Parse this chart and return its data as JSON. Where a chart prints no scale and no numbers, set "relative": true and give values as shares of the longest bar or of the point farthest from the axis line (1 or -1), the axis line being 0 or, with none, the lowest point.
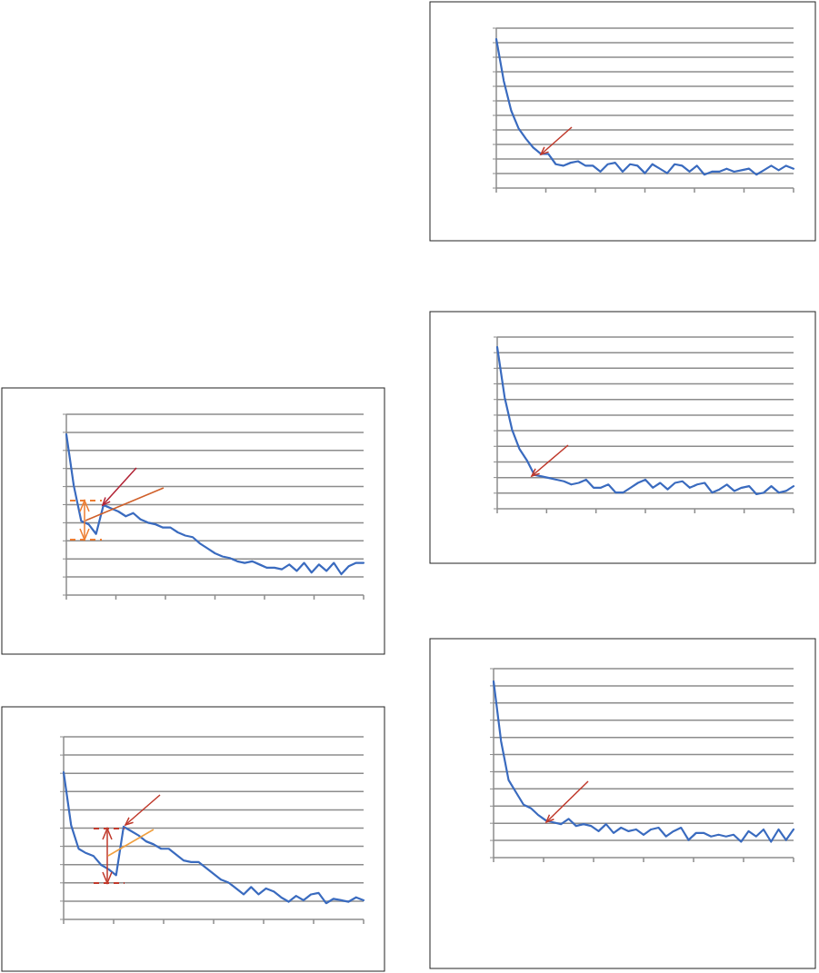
{
  "chart_data": [
    {
      "type": "line",
      "relative": true,
      "grid": "y",
      "categories": [
        null,
        null,
        null,
        null,
        null,
        null,
        null,
        null,
        null,
        null,
        null,
        null,
        null,
        null,
        null,
        null,
        null,
        null,
        null,
        null,
        null,
        null,
        null,
        null,
        null,
        null,
        null,
        null,
        null,
        null,
        null,
        null,
        null,
        null,
        null,
        null,
        null,
        null,
        null,
        null,
        null
      ],
      "series": [
        {
          "color": "#3a6bbf",
          "values": [
            1.0,
            0.68,
            0.46,
            0.44,
            0.38,
            0.56,
            0.54,
            0.52,
            0.49,
            0.51,
            0.47,
            0.45,
            0.44,
            0.42,
            0.42,
            0.39,
            0.37,
            0.36,
            0.32,
            0.29,
            0.26,
            0.24,
            0.23,
            0.21,
            0.2,
            0.21,
            0.19,
            0.17,
            0.17,
            0.16,
            0.19,
            0.15,
            0.2,
            0.14,
            0.19,
            0.15,
            0.2,
            0.13,
            0.18,
            0.2,
            0.2
          ]
        }
      ]
    },
    {
      "type": "line",
      "relative": true,
      "grid": "y",
      "categories": [
        null,
        null,
        null,
        null,
        null,
        null,
        null,
        null,
        null,
        null,
        null,
        null,
        null,
        null,
        null,
        null,
        null,
        null,
        null,
        null,
        null,
        null,
        null,
        null,
        null,
        null,
        null,
        null,
        null,
        null,
        null,
        null,
        null,
        null,
        null,
        null,
        null,
        null,
        null,
        null,
        null
      ],
      "series": [
        {
          "color": "#3a6bbf",
          "values": [
            1.0,
            0.64,
            0.48,
            0.45,
            0.43,
            0.37,
            0.34,
            0.3,
            0.63,
            0.6,
            0.57,
            0.53,
            0.51,
            0.48,
            0.48,
            0.44,
            0.4,
            0.39,
            0.39,
            0.35,
            0.31,
            0.27,
            0.25,
            0.21,
            0.17,
            0.22,
            0.17,
            0.21,
            0.19,
            0.15,
            0.12,
            0.16,
            0.13,
            0.17,
            0.18,
            0.11,
            0.14,
            0.13,
            0.12,
            0.15,
            0.13
          ]
        }
      ]
    },
    {
      "type": "line",
      "relative": true,
      "grid": "y",
      "categories": [
        null,
        null,
        null,
        null,
        null,
        null,
        null,
        null,
        null,
        null,
        null,
        null,
        null,
        null,
        null,
        null,
        null,
        null,
        null,
        null,
        null,
        null,
        null,
        null,
        null,
        null,
        null,
        null,
        null,
        null,
        null,
        null,
        null,
        null,
        null,
        null,
        null,
        null,
        null,
        null,
        null
      ],
      "series": [
        {
          "color": "#3a6bbf",
          "values": [
            1.0,
            0.72,
            0.52,
            0.4,
            0.33,
            0.27,
            0.23,
            0.23,
            0.16,
            0.15,
            0.17,
            0.18,
            0.15,
            0.15,
            0.11,
            0.16,
            0.17,
            0.11,
            0.16,
            0.15,
            0.1,
            0.16,
            0.13,
            0.1,
            0.16,
            0.15,
            0.11,
            0.15,
            0.09,
            0.11,
            0.11,
            0.13,
            0.11,
            0.12,
            0.13,
            0.09,
            0.12,
            0.15,
            0.12,
            0.15,
            0.13
          ]
        }
      ]
    },
    {
      "type": "line",
      "relative": true,
      "grid": "y",
      "categories": [
        null,
        null,
        null,
        null,
        null,
        null,
        null,
        null,
        null,
        null,
        null,
        null,
        null,
        null,
        null,
        null,
        null,
        null,
        null,
        null,
        null,
        null,
        null,
        null,
        null,
        null,
        null,
        null,
        null,
        null,
        null,
        null,
        null,
        null,
        null,
        null,
        null,
        null,
        null,
        null,
        null
      ],
      "series": [
        {
          "color": "#3a6bbf",
          "values": [
            1.0,
            0.69,
            0.49,
            0.37,
            0.3,
            0.21,
            0.2,
            0.19,
            0.18,
            0.17,
            0.15,
            0.16,
            0.18,
            0.13,
            0.13,
            0.15,
            0.1,
            0.1,
            0.13,
            0.16,
            0.18,
            0.13,
            0.16,
            0.12,
            0.16,
            0.17,
            0.13,
            0.15,
            0.16,
            0.1,
            0.12,
            0.15,
            0.11,
            0.13,
            0.14,
            0.09,
            0.1,
            0.14,
            0.1,
            0.11,
            0.14
          ]
        }
      ]
    },
    {
      "type": "line",
      "relative": true,
      "grid": "y",
      "categories": [
        null,
        null,
        null,
        null,
        null,
        null,
        null,
        null,
        null,
        null,
        null,
        null,
        null,
        null,
        null,
        null,
        null,
        null,
        null,
        null,
        null,
        null,
        null,
        null,
        null,
        null,
        null,
        null,
        null,
        null,
        null,
        null,
        null,
        null,
        null,
        null,
        null,
        null,
        null,
        null,
        null
      ],
      "series": [
        {
          "color": "#3a6bbf",
          "values": [
            1.0,
            0.66,
            0.44,
            0.37,
            0.3,
            0.28,
            0.24,
            0.21,
            0.2,
            0.19,
            0.22,
            0.18,
            0.19,
            0.18,
            0.15,
            0.19,
            0.14,
            0.17,
            0.15,
            0.16,
            0.13,
            0.16,
            0.17,
            0.12,
            0.15,
            0.17,
            0.1,
            0.14,
            0.14,
            0.12,
            0.13,
            0.12,
            0.13,
            0.09,
            0.15,
            0.12,
            0.16,
            0.09,
            0.16,
            0.1,
            0.16
          ]
        }
      ]
    }
  ]
}
